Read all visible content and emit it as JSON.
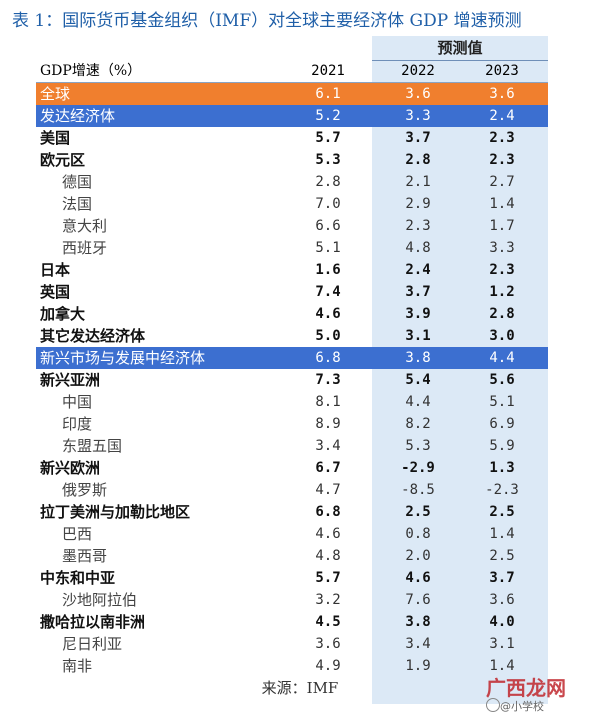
{
  "title": "表 1：国际货币基金组织（IMF）对全球主要经济体 GDP 增速预测",
  "header": {
    "forecast_label": "预测值",
    "indicator_label": "GDP增速（%）",
    "years": [
      "2021",
      "2022",
      "2023"
    ]
  },
  "rows": [
    {
      "name": "全球",
      "values": [
        "6.1",
        "3.6",
        "3.6"
      ]
    },
    {
      "name": "发达经济体",
      "values": [
        "5.2",
        "3.3",
        "2.4"
      ]
    },
    {
      "name": "美国",
      "values": [
        "5.7",
        "3.7",
        "2.3"
      ]
    },
    {
      "name": "欧元区",
      "values": [
        "5.3",
        "2.8",
        "2.3"
      ]
    },
    {
      "name": "德国",
      "values": [
        "2.8",
        "2.1",
        "2.7"
      ]
    },
    {
      "name": "法国",
      "values": [
        "7.0",
        "2.9",
        "1.4"
      ]
    },
    {
      "name": "意大利",
      "values": [
        "6.6",
        "2.3",
        "1.7"
      ]
    },
    {
      "name": "西班牙",
      "values": [
        "5.1",
        "4.8",
        "3.3"
      ]
    },
    {
      "name": "日本",
      "values": [
        "1.6",
        "2.4",
        "2.3"
      ]
    },
    {
      "name": "英国",
      "values": [
        "7.4",
        "3.7",
        "1.2"
      ]
    },
    {
      "name": "加拿大",
      "values": [
        "4.6",
        "3.9",
        "2.8"
      ]
    },
    {
      "name": "其它发达经济体",
      "values": [
        "5.0",
        "3.1",
        "3.0"
      ]
    },
    {
      "name": "新兴市场与发展中经济体",
      "values": [
        "6.8",
        "3.8",
        "4.4"
      ]
    },
    {
      "name": "新兴亚洲",
      "values": [
        "7.3",
        "5.4",
        "5.6"
      ]
    },
    {
      "name": "中国",
      "values": [
        "8.1",
        "4.4",
        "5.1"
      ]
    },
    {
      "name": "印度",
      "values": [
        "8.9",
        "8.2",
        "6.9"
      ]
    },
    {
      "name": "东盟五国",
      "values": [
        "3.4",
        "5.3",
        "5.9"
      ]
    },
    {
      "name": "新兴欧洲",
      "values": [
        "6.7",
        "-2.9",
        "1.3"
      ]
    },
    {
      "name": "俄罗斯",
      "values": [
        "4.7",
        "-8.5",
        "-2.3"
      ]
    },
    {
      "name": "拉丁美洲与加勒比地区",
      "values": [
        "6.8",
        "2.5",
        "2.5"
      ]
    },
    {
      "name": "巴西",
      "values": [
        "4.6",
        "0.8",
        "1.4"
      ]
    },
    {
      "name": "墨西哥",
      "values": [
        "4.8",
        "2.0",
        "2.5"
      ]
    },
    {
      "name": "中东和中亚",
      "values": [
        "5.7",
        "4.6",
        "3.7"
      ]
    },
    {
      "name": "沙地阿拉伯",
      "values": [
        "3.2",
        "7.6",
        "3.6"
      ]
    },
    {
      "name": "撒哈拉以南非洲",
      "values": [
        "4.5",
        "3.8",
        "4.0"
      ]
    },
    {
      "name": "尼日利亚",
      "values": [
        "3.6",
        "3.4",
        "3.1"
      ]
    },
    {
      "name": "南非",
      "values": [
        "4.9",
        "1.9",
        "1.4"
      ]
    }
  ],
  "source": "来源：IMF",
  "watermark": {
    "main": "广西龙网",
    "sub": "@小学校"
  },
  "colors": {
    "title": "#1f5fa8",
    "highlight_orange": "#f07f2e",
    "highlight_blue": "#3c6fd0",
    "forecast_bg": "#dce9f6"
  }
}
